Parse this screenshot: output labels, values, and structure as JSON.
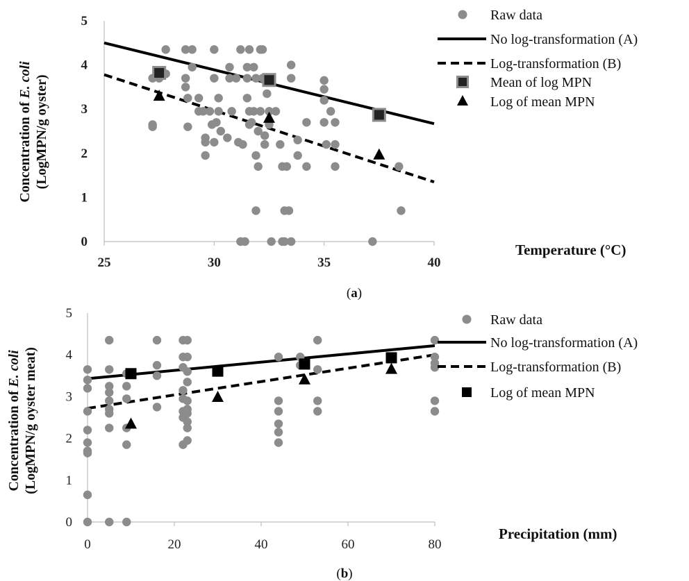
{
  "chart_data": [
    {
      "panel": "a",
      "type": "scatter",
      "xlabel": "Temperature (°C)",
      "ylabel_line1": "Concentration of ",
      "ylabel_italic": "E. coli",
      "ylabel_line2": "(LogMPN/g oyster)",
      "xlim": [
        25,
        40
      ],
      "ylim": [
        0,
        5
      ],
      "x_ticks": [
        "25",
        "30",
        "35",
        "40"
      ],
      "y_ticks": [
        "0",
        "1",
        "2",
        "3",
        "4",
        "5"
      ],
      "panel_label_open": "(",
      "panel_label_letter": "a",
      "panel_label_close": ")",
      "legend": [
        "Raw data",
        "No log-transformation (A)",
        "Log-transformation (B)",
        "Mean of log MPN",
        "Log of mean MPN"
      ],
      "series": [
        {
          "name": "Raw data",
          "marker": "circle",
          "color": "#8c8c8c",
          "points": [
            [
              27.2,
              3.7
            ],
            [
              27.2,
              2.65
            ],
            [
              27.2,
              2.6
            ],
            [
              27.5,
              3.7
            ],
            [
              27.8,
              4.35
            ],
            [
              27.8,
              3.8
            ],
            [
              28.7,
              4.35
            ],
            [
              28.7,
              3.7
            ],
            [
              28.7,
              3.5
            ],
            [
              28.8,
              3.25
            ],
            [
              28.8,
              2.6
            ],
            [
              29.0,
              4.35
            ],
            [
              29.0,
              3.95
            ],
            [
              29.3,
              3.25
            ],
            [
              29.3,
              2.95
            ],
            [
              29.5,
              2.95
            ],
            [
              29.6,
              2.35
            ],
            [
              29.6,
              2.25
            ],
            [
              29.6,
              1.95
            ],
            [
              29.8,
              2.95
            ],
            [
              29.9,
              2.65
            ],
            [
              30.0,
              4.35
            ],
            [
              30.0,
              3.7
            ],
            [
              30.0,
              2.25
            ],
            [
              30.1,
              2.7
            ],
            [
              30.2,
              2.95
            ],
            [
              30.2,
              3.25
            ],
            [
              30.3,
              2.5
            ],
            [
              30.6,
              2.35
            ],
            [
              30.7,
              3.95
            ],
            [
              30.7,
              3.7
            ],
            [
              30.8,
              2.95
            ],
            [
              31.0,
              3.7
            ],
            [
              31.1,
              2.25
            ],
            [
              31.2,
              4.35
            ],
            [
              31.2,
              0
            ],
            [
              31.3,
              2.2
            ],
            [
              31.4,
              0
            ],
            [
              31.5,
              3.95
            ],
            [
              31.5,
              3.7
            ],
            [
              31.5,
              3.25
            ],
            [
              31.6,
              4.35
            ],
            [
              31.6,
              2.95
            ],
            [
              31.6,
              2.65
            ],
            [
              31.7,
              2.7
            ],
            [
              31.8,
              3.95
            ],
            [
              31.8,
              2.95
            ],
            [
              31.9,
              3.7
            ],
            [
              31.9,
              1.95
            ],
            [
              31.9,
              0.7
            ],
            [
              32.0,
              1.7
            ],
            [
              32.0,
              2.5
            ],
            [
              32.1,
              2.95
            ],
            [
              32.1,
              4.35
            ],
            [
              32.2,
              4.35
            ],
            [
              32.2,
              3.7
            ],
            [
              32.3,
              2.4
            ],
            [
              32.3,
              2.2
            ],
            [
              32.4,
              3.35
            ],
            [
              32.5,
              2.95
            ],
            [
              32.5,
              2.65
            ],
            [
              32.6,
              0
            ],
            [
              32.8,
              2.95
            ],
            [
              33.0,
              2.2
            ],
            [
              33.1,
              1.7
            ],
            [
              33.1,
              0
            ],
            [
              33.2,
              0.7
            ],
            [
              33.2,
              0
            ],
            [
              33.3,
              1.7
            ],
            [
              33.4,
              0.7
            ],
            [
              33.5,
              0
            ],
            [
              33.5,
              4.0
            ],
            [
              33.5,
              3.7
            ],
            [
              33.8,
              2.3
            ],
            [
              33.8,
              1.95
            ],
            [
              34.2,
              2.7
            ],
            [
              34.2,
              1.7
            ],
            [
              35.0,
              3.65
            ],
            [
              35.0,
              3.45
            ],
            [
              35.0,
              3.2
            ],
            [
              35.0,
              2.7
            ],
            [
              35.1,
              2.2
            ],
            [
              35.3,
              2.95
            ],
            [
              35.5,
              2.7
            ],
            [
              35.5,
              2.2
            ],
            [
              35.5,
              1.7
            ],
            [
              37.2,
              0
            ],
            [
              38.4,
              1.7
            ],
            [
              38.5,
              0.7
            ]
          ]
        },
        {
          "name": "No log-transformation (A)",
          "type": "line",
          "style": "solid",
          "x": [
            25,
            40
          ],
          "y": [
            4.5,
            2.67
          ]
        },
        {
          "name": "Log-transformation (B)",
          "type": "line",
          "style": "dashed",
          "x": [
            25,
            40
          ],
          "y": [
            3.78,
            1.35
          ]
        },
        {
          "name": "Mean of log MPN",
          "marker": "square",
          "points": [
            [
              27.5,
              3.82
            ],
            [
              32.5,
              3.66
            ],
            [
              37.5,
              2.87
            ]
          ]
        },
        {
          "name": "Log of mean MPN",
          "marker": "triangle",
          "points": [
            [
              27.5,
              3.3
            ],
            [
              32.5,
              2.8
            ],
            [
              37.5,
              1.97
            ]
          ]
        }
      ]
    },
    {
      "panel": "b",
      "type": "scatter",
      "xlabel": "Precipitation (mm)",
      "ylabel_line1": "Concentration of ",
      "ylabel_italic": "E. coli",
      "ylabel_line2": "(LogMPN/g oyster meat)",
      "xlim": [
        0,
        80
      ],
      "ylim": [
        0,
        5
      ],
      "x_ticks": [
        "0",
        "20",
        "40",
        "60",
        "80"
      ],
      "y_ticks": [
        "0",
        "1",
        "2",
        "3",
        "4",
        "5"
      ],
      "panel_label_open": "(",
      "panel_label_letter": "b",
      "panel_label_close": ")",
      "legend": [
        "Raw data",
        "No log-transformation (A)",
        "Log-transformation (B)",
        "Log of mean MPN"
      ],
      "series": [
        {
          "name": "Raw data",
          "marker": "circle",
          "color": "#8c8c8c",
          "points": [
            [
              0,
              3.65
            ],
            [
              0,
              3.4
            ],
            [
              0,
              3.2
            ],
            [
              0,
              2.65
            ],
            [
              0,
              2.2
            ],
            [
              0,
              1.9
            ],
            [
              0,
              1.7
            ],
            [
              0,
              1.65
            ],
            [
              0,
              0.65
            ],
            [
              0,
              0
            ],
            [
              5,
              4.35
            ],
            [
              5,
              3.65
            ],
            [
              5,
              3.25
            ],
            [
              5,
              3.1
            ],
            [
              5,
              2.9
            ],
            [
              5,
              2.7
            ],
            [
              5,
              2.6
            ],
            [
              5,
              2.25
            ],
            [
              5,
              0
            ],
            [
              9,
              3.55
            ],
            [
              9,
              3.25
            ],
            [
              9,
              2.95
            ],
            [
              9,
              2.25
            ],
            [
              9,
              1.85
            ],
            [
              9,
              0
            ],
            [
              16,
              4.35
            ],
            [
              16,
              3.75
            ],
            [
              16,
              3.5
            ],
            [
              16,
              2.75
            ],
            [
              22,
              4.35
            ],
            [
              22,
              3.95
            ],
            [
              22,
              3.7
            ],
            [
              22,
              3.15
            ],
            [
              22,
              2.95
            ],
            [
              22,
              2.65
            ],
            [
              22,
              2.5
            ],
            [
              22,
              1.85
            ],
            [
              23,
              4.35
            ],
            [
              23,
              3.95
            ],
            [
              23,
              3.6
            ],
            [
              23,
              3.35
            ],
            [
              23,
              2.9
            ],
            [
              23,
              2.7
            ],
            [
              23,
              2.6
            ],
            [
              23,
              2.4
            ],
            [
              23,
              2.25
            ],
            [
              23,
              1.95
            ],
            [
              44,
              3.95
            ],
            [
              44,
              2.9
            ],
            [
              44,
              2.65
            ],
            [
              44,
              2.35
            ],
            [
              44,
              2.15
            ],
            [
              44,
              1.9
            ],
            [
              49,
              3.95
            ],
            [
              49,
              3.75
            ],
            [
              53,
              4.35
            ],
            [
              53,
              3.65
            ],
            [
              53,
              2.9
            ],
            [
              53,
              2.65
            ],
            [
              80,
              4.35
            ],
            [
              80,
              3.95
            ],
            [
              80,
              3.8
            ],
            [
              80,
              3.7
            ],
            [
              80,
              2.9
            ],
            [
              80,
              2.65
            ]
          ]
        },
        {
          "name": "No log-transformation (A)",
          "type": "line",
          "style": "solid",
          "x": [
            0,
            80
          ],
          "y": [
            3.43,
            4.22
          ]
        },
        {
          "name": "Log-transformation (B)",
          "type": "line",
          "style": "dashed",
          "x": [
            0,
            80
          ],
          "y": [
            2.72,
            4.0
          ]
        },
        {
          "name": "Log of mean MPN",
          "marker": "square",
          "points": [
            [
              10,
              3.55
            ],
            [
              30,
              3.61
            ],
            [
              50,
              3.78
            ],
            [
              70,
              3.93
            ]
          ]
        },
        {
          "name": "",
          "marker": "triangle",
          "points": [
            [
              10,
              2.35
            ],
            [
              30,
              2.99
            ],
            [
              50,
              3.41
            ],
            [
              70,
              3.66
            ]
          ]
        }
      ]
    }
  ]
}
